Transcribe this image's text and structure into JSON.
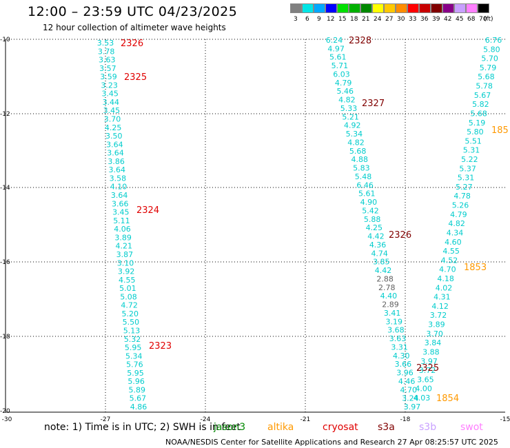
{
  "header": {
    "title": "12:00 – 23:59 UTC 04/23/2025",
    "subtitle": "12 hour collection of altimeter wave heights"
  },
  "legend": {
    "unit": "(ft)",
    "items": [
      {
        "label": "3",
        "color": "#808080"
      },
      {
        "label": "6",
        "color": "#00e5e5"
      },
      {
        "label": "9",
        "color": "#00a8ff"
      },
      {
        "label": "12",
        "color": "#0000ff"
      },
      {
        "label": "15",
        "color": "#00e000"
      },
      {
        "label": "18",
        "color": "#00b000"
      },
      {
        "label": "21",
        "color": "#008800"
      },
      {
        "label": "24",
        "color": "#ffff00"
      },
      {
        "label": "27",
        "color": "#ffc800"
      },
      {
        "label": "30",
        "color": "#ff8c00"
      },
      {
        "label": "33",
        "color": "#ff0000"
      },
      {
        "label": "36",
        "color": "#c80000"
      },
      {
        "label": "39",
        "color": "#800000"
      },
      {
        "label": "42",
        "color": "#880088"
      },
      {
        "label": "45",
        "color": "#c8a0ff"
      },
      {
        "label": "68",
        "color": "#ff80ff"
      },
      {
        "label": "70",
        "color": "#000000"
      }
    ]
  },
  "axes": {
    "lat_labels": [
      "-10",
      "-12",
      "-14",
      "-16",
      "-18",
      "-20"
    ],
    "lon_labels": [
      "-30",
      "-27",
      "-24",
      "-21",
      "-18",
      "-15"
    ]
  },
  "tracks": [
    {
      "color": "#00cccc",
      "values": [
        "3.53",
        "3.78",
        "3.63",
        "3.57",
        "3.59",
        "3.23",
        "3.45",
        "3.44",
        "3.45",
        "3.70",
        "4.25",
        "3.50",
        "3.64",
        "3.64",
        "3.86",
        "3.64",
        "3.58",
        "4.10",
        "3.64",
        "3.66",
        "3.45",
        "5.11",
        "4.06",
        "3.89",
        "4.21",
        "3.87",
        "3.10",
        "3.92",
        "4.55",
        "5.01",
        "5.08",
        "4.72",
        "5.20",
        "5.50",
        "5.13",
        "5.32",
        "5.95",
        "5.34",
        "5.76",
        "5.95",
        "5.96",
        "5.89",
        "5.67",
        "4.86"
      ]
    },
    {
      "color": "#00cccc",
      "values": [
        "6.24",
        "4.97",
        "5.61",
        "5.71",
        "6.03",
        "4.79",
        "5.46",
        "4.82",
        "5.33",
        "5.21",
        "4.92",
        "5.34",
        "4.82",
        "5.68",
        "4.88",
        "5.83",
        "5.48",
        "6.46",
        "5.61",
        "4.90",
        "5.42",
        "5.88",
        "4.25",
        "4.42",
        "4.36",
        "4.74",
        "3.85",
        "4.42",
        "2.88",
        "2.78",
        "4.40",
        "2.89",
        "3.41",
        "3.19",
        "3.68",
        "3.63",
        "3.31",
        "4.30",
        "3.66",
        "3.96",
        "4.46",
        "4.70",
        "3.24",
        "3.97"
      ]
    },
    {
      "color": "#00cccc",
      "values": [
        "6.76",
        "5.80",
        "5.70",
        "5.79",
        "5.68",
        "5.78",
        "5.67",
        "5.82",
        "5.68",
        "5.19",
        "5.80",
        "5.51",
        "5.31",
        "5.22",
        "5.37",
        "5.31",
        "5.27",
        "4.78",
        "5.26",
        "4.79",
        "4.82",
        "4.34",
        "4.60",
        "4.55",
        "4.52",
        "4.70",
        "4.18",
        "4.02",
        "4.31",
        "4.12",
        "3.72",
        "3.89",
        "3.70",
        "3.84",
        "3.88",
        "3.97",
        "3.72",
        "3.65",
        "4.00",
        "4.03"
      ]
    }
  ],
  "gray_values": [
    "2.88",
    "2.78",
    "2.89"
  ],
  "time_labels": [
    {
      "text": "2326",
      "color": "#e00000"
    },
    {
      "text": "2325",
      "color": "#e00000"
    },
    {
      "text": "2324",
      "color": "#e00000"
    },
    {
      "text": "2323",
      "color": "#e00000"
    },
    {
      "text": "2328",
      "color": "#800000"
    },
    {
      "text": "2327",
      "color": "#800000"
    },
    {
      "text": "2326",
      "color": "#800000"
    },
    {
      "text": "2325",
      "color": "#800000"
    },
    {
      "text": "185",
      "color": "#ff9900"
    },
    {
      "text": "1853",
      "color": "#ff9900"
    },
    {
      "text": "1854",
      "color": "#ff9900"
    }
  ],
  "footer": {
    "note": "note:  1) Time is in UTC; 2) SWH is in feet",
    "credit": "NOAA/NESDIS Center for Satellite Applications and Research    27 Apr 08:25:57 UTC 2025"
  },
  "satellites": [
    {
      "name": "jason3",
      "color": "#008800"
    },
    {
      "name": "altika",
      "color": "#ff9900"
    },
    {
      "name": "cryosat",
      "color": "#e00000"
    },
    {
      "name": "s3a",
      "color": "#800000"
    },
    {
      "name": "s3b",
      "color": "#c8a0ff"
    },
    {
      "name": "swot",
      "color": "#ff80ff"
    }
  ]
}
